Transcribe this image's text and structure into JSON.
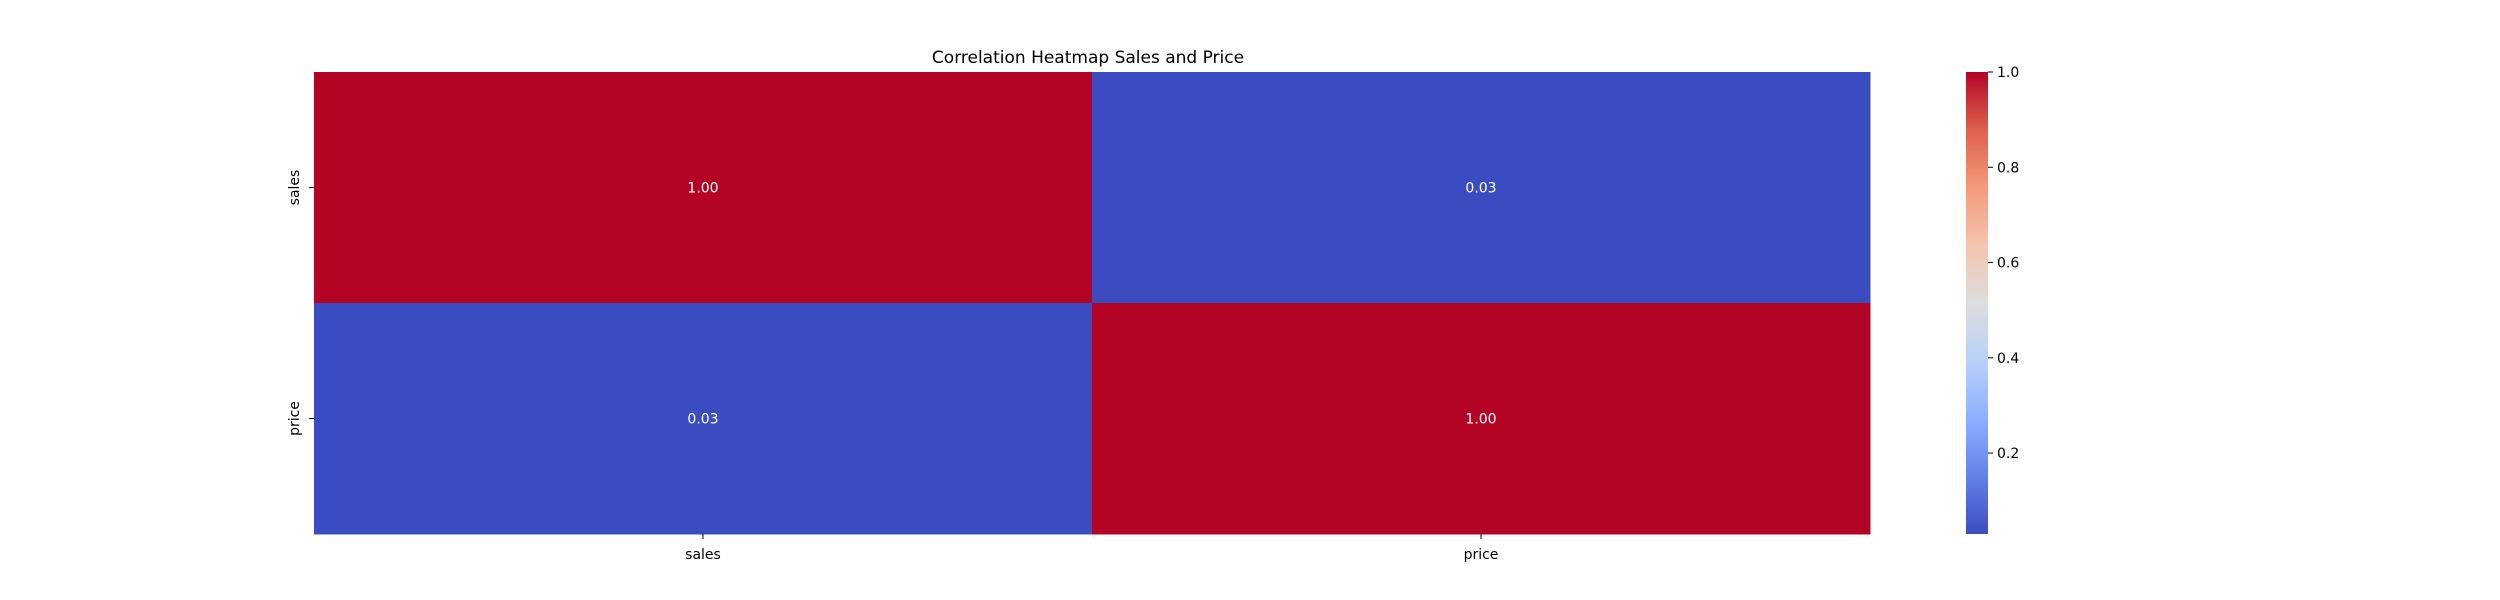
{
  "chart_data": {
    "type": "heatmap",
    "title": "Correlation Heatmap Sales and Price",
    "x_categories": [
      "sales",
      "price"
    ],
    "y_categories": [
      "sales",
      "price"
    ],
    "values": [
      [
        1.0,
        0.03
      ],
      [
        0.03,
        1.0
      ]
    ],
    "value_labels": [
      [
        "1.00",
        "0.03"
      ],
      [
        "0.03",
        "1.00"
      ]
    ],
    "colorbar": {
      "colormap": "coolwarm",
      "range": [
        0.03,
        1.0
      ],
      "ticks": [
        0.2,
        0.4,
        0.6,
        0.8,
        1.0
      ],
      "tick_labels": [
        "0.2",
        "0.4",
        "0.6",
        "0.8",
        "1.0"
      ],
      "low_color": "#3b4cc0",
      "high_color": "#b40426"
    }
  }
}
